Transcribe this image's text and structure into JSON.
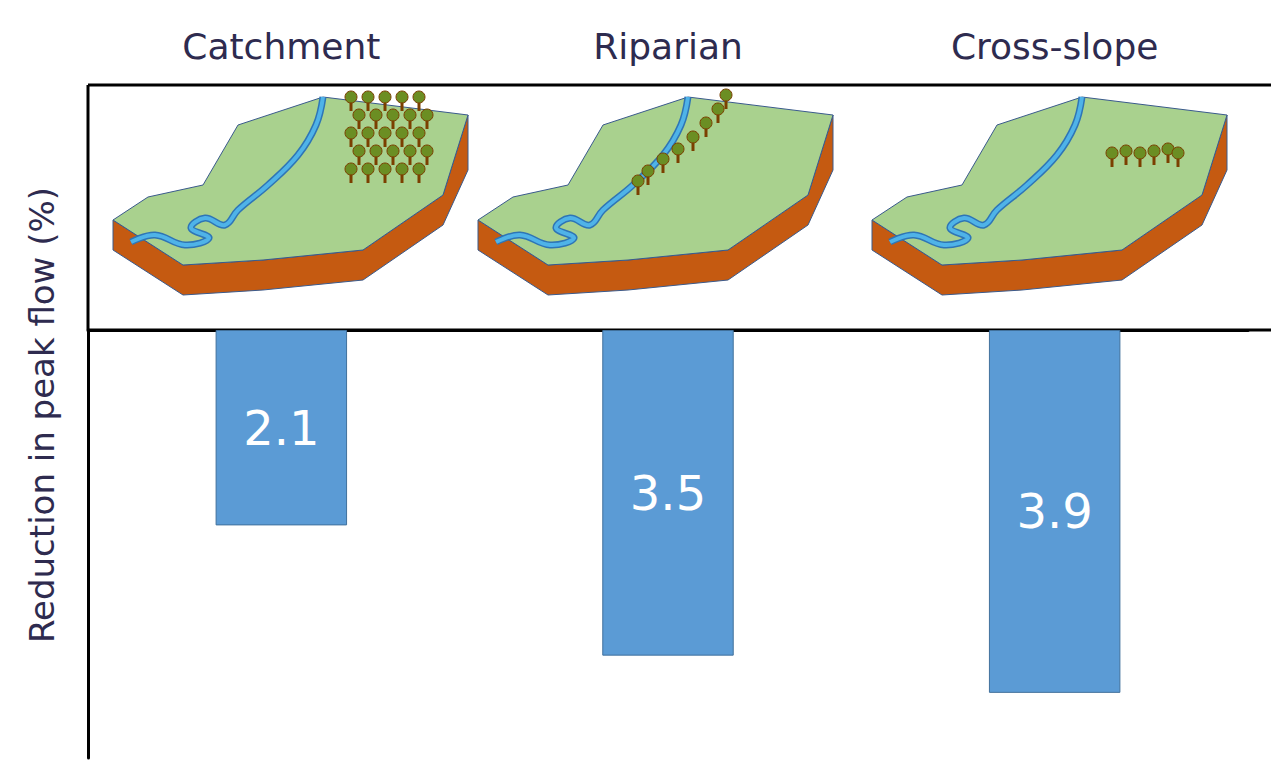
{
  "chart_data": {
    "type": "bar",
    "y_label": "Reduction in peak flow (%)",
    "categories": [
      "Catchment",
      "Riparian",
      "Cross-slope"
    ],
    "values": [
      2.1,
      3.5,
      3.9
    ],
    "color": "#5b9bd5",
    "ylim": [
      0,
      4.6
    ],
    "grid": false,
    "data_labels": true,
    "tick_labels": "x"
  }
}
